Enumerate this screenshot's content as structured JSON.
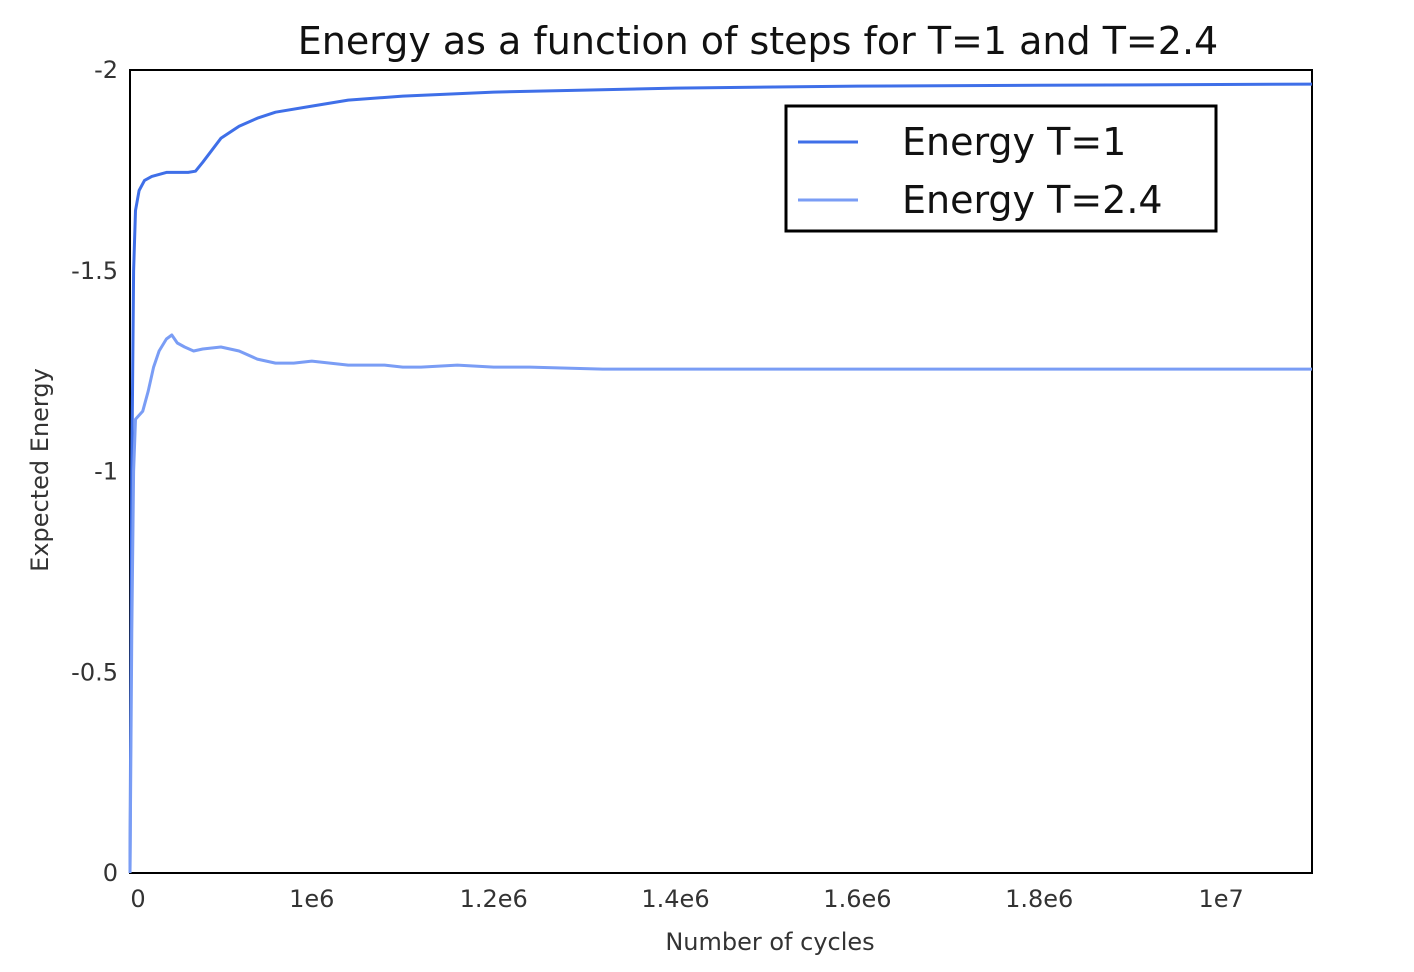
{
  "chart_data": {
    "type": "line",
    "title": "Energy as a function of steps for T=1 and T=2.4",
    "xlabel": "Number of cycles",
    "ylabel": "Expected Energy",
    "x_ticks": [
      {
        "value": 0,
        "label": "0"
      },
      {
        "value": 1000000,
        "label": "1e6"
      },
      {
        "value": 2000000,
        "label": "1.2e6"
      },
      {
        "value": 3000000,
        "label": "1.4e6"
      },
      {
        "value": 4000000,
        "label": "1.6e6"
      },
      {
        "value": 5000000,
        "label": "1.8e6"
      },
      {
        "value": 6000000,
        "label": "1e7"
      }
    ],
    "y_ticks": [
      {
        "value": 0,
        "label": "0"
      },
      {
        "value": -0.5,
        "label": "-0.5"
      },
      {
        "value": -1,
        "label": "-1"
      },
      {
        "value": -1.5,
        "label": "-1.5"
      },
      {
        "value": -2,
        "label": "-2"
      }
    ],
    "xlim": [
      0,
      6500000
    ],
    "ylim": [
      0,
      -2
    ],
    "grid": false,
    "legend_position": "top-right",
    "series": [
      {
        "name": "Energy T=1",
        "color": "#3f6fe8",
        "x": [
          0,
          10000,
          20000,
          30000,
          50000,
          80000,
          120000,
          160000,
          200000,
          250000,
          320000,
          360000,
          400000,
          450000,
          500000,
          600000,
          700000,
          800000,
          1000000,
          1200000,
          1500000,
          2000000,
          2500000,
          3000000,
          4000000,
          5000000,
          6500000
        ],
        "y": [
          0,
          -1.0,
          -1.5,
          -1.65,
          -1.7,
          -1.725,
          -1.735,
          -1.74,
          -1.745,
          -1.745,
          -1.745,
          -1.748,
          -1.77,
          -1.8,
          -1.83,
          -1.86,
          -1.88,
          -1.895,
          -1.91,
          -1.925,
          -1.935,
          -1.945,
          -1.95,
          -1.955,
          -1.96,
          -1.962,
          -1.965
        ]
      },
      {
        "name": "Energy T=2.4",
        "color": "#7a9df5",
        "x": [
          0,
          10000,
          20000,
          30000,
          50000,
          70000,
          100000,
          130000,
          160000,
          200000,
          230000,
          260000,
          300000,
          350000,
          400000,
          500000,
          600000,
          700000,
          800000,
          900000,
          1000000,
          1100000,
          1200000,
          1300000,
          1400000,
          1500000,
          1600000,
          1800000,
          2000000,
          2200000,
          2600000,
          3000000,
          3500000,
          4000000,
          4500000,
          5000000,
          5500000,
          6000000,
          6500000
        ],
        "y": [
          0,
          -0.6,
          -1.0,
          -1.13,
          -1.14,
          -1.15,
          -1.2,
          -1.26,
          -1.3,
          -1.33,
          -1.34,
          -1.32,
          -1.31,
          -1.3,
          -1.305,
          -1.31,
          -1.3,
          -1.28,
          -1.27,
          -1.27,
          -1.275,
          -1.27,
          -1.265,
          -1.265,
          -1.265,
          -1.26,
          -1.26,
          -1.265,
          -1.26,
          -1.26,
          -1.255,
          -1.255,
          -1.255,
          -1.255,
          -1.255,
          -1.255,
          -1.255,
          -1.255,
          -1.255
        ]
      }
    ]
  }
}
